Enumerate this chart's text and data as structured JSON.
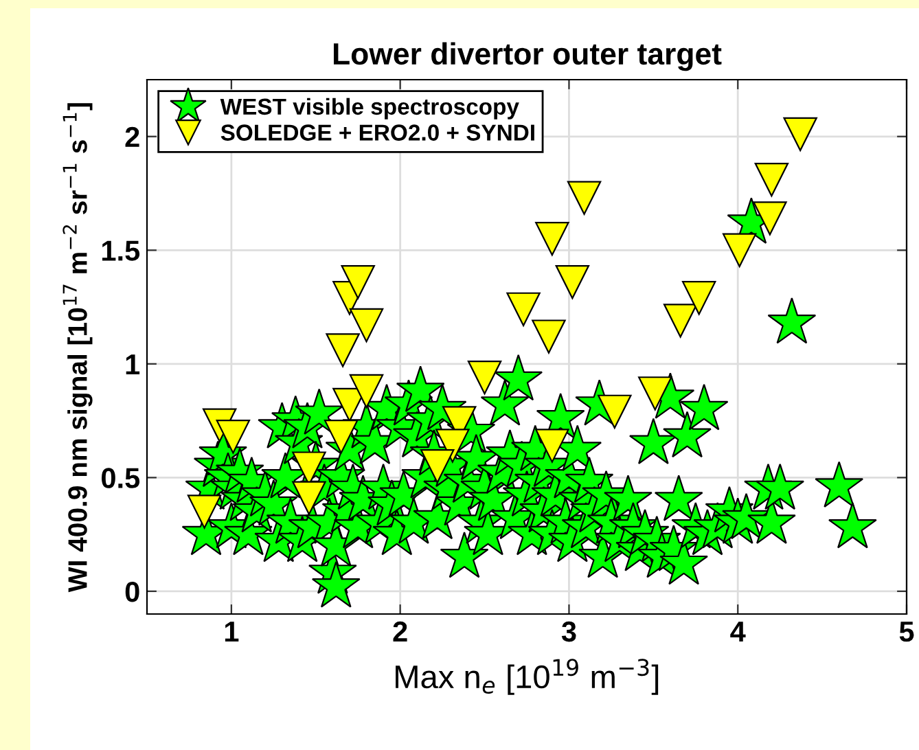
{
  "chart_data": {
    "type": "scatter",
    "title": "Lower divertor outer target",
    "xlabel": "Max n$_{e}$ [10$^{19}$ m$^{−3}$]",
    "ylabel": "WI 400.9 nm signal [10$^{17}$ m$^{−2}$ sr$^{−1}$ s$^{−1}$]",
    "xlim": [
      0.5,
      5
    ],
    "ylim": [
      -0.1,
      2.25
    ],
    "xticks": [
      1,
      2,
      3,
      4,
      5
    ],
    "yticks": [
      0,
      0.5,
      1,
      1.5,
      2
    ],
    "grid": true,
    "legend": "top left",
    "series": [
      {
        "name": "WEST visible spectroscopy",
        "color": "#00ff00",
        "marker": "star",
        "x": [
          0.85,
          0.87,
          0.92,
          0.95,
          0.98,
          1.0,
          1.02,
          1.05,
          1.08,
          1.1,
          1.12,
          1.15,
          1.2,
          1.25,
          1.28,
          1.3,
          1.32,
          1.35,
          1.38,
          1.4,
          1.42,
          1.45,
          1.48,
          1.5,
          1.52,
          1.55,
          1.58,
          1.6,
          1.62,
          1.62,
          1.65,
          1.68,
          1.7,
          1.72,
          1.75,
          1.78,
          1.8,
          1.85,
          1.88,
          1.9,
          1.92,
          1.95,
          1.98,
          2.0,
          2.02,
          2.05,
          2.08,
          2.1,
          2.12,
          2.15,
          2.18,
          2.2,
          2.22,
          2.25,
          2.28,
          2.3,
          2.35,
          2.38,
          2.4,
          2.42,
          2.45,
          2.48,
          2.5,
          2.52,
          2.55,
          2.6,
          2.62,
          2.65,
          2.68,
          2.7,
          2.72,
          2.75,
          2.78,
          2.8,
          2.82,
          2.85,
          2.88,
          2.9,
          2.92,
          2.95,
          2.98,
          3.0,
          3.02,
          3.05,
          3.08,
          3.1,
          3.12,
          3.15,
          3.18,
          3.2,
          3.22,
          3.25,
          3.3,
          3.35,
          3.38,
          3.42,
          3.45,
          3.5,
          3.52,
          3.55,
          3.6,
          3.62,
          3.65,
          3.68,
          3.7,
          3.75,
          3.8,
          3.82,
          3.88,
          3.95,
          4.0,
          4.05,
          4.08,
          4.18,
          4.2,
          4.25,
          4.32,
          4.6,
          4.68
        ],
        "values": [
          0.25,
          0.45,
          0.55,
          0.6,
          0.5,
          0.28,
          0.45,
          0.52,
          0.4,
          0.25,
          0.48,
          0.35,
          0.42,
          0.38,
          0.22,
          0.72,
          0.5,
          0.3,
          0.75,
          0.65,
          0.22,
          0.72,
          0.28,
          0.55,
          0.78,
          0.45,
          0.3,
          0.08,
          0.02,
          0.2,
          0.5,
          0.35,
          0.62,
          0.45,
          0.28,
          0.4,
          0.72,
          0.65,
          0.3,
          0.45,
          0.8,
          0.38,
          0.25,
          0.72,
          0.42,
          0.82,
          0.3,
          0.68,
          0.88,
          0.5,
          0.75,
          0.6,
          0.32,
          0.8,
          0.45,
          0.55,
          0.38,
          0.15,
          0.48,
          0.7,
          0.58,
          0.3,
          0.45,
          0.25,
          0.4,
          0.52,
          0.82,
          0.6,
          0.32,
          0.93,
          0.55,
          0.42,
          0.25,
          0.62,
          0.48,
          0.35,
          0.55,
          0.25,
          0.42,
          0.76,
          0.3,
          0.5,
          0.22,
          0.62,
          0.4,
          0.28,
          0.48,
          0.35,
          0.82,
          0.15,
          0.42,
          0.3,
          0.22,
          0.4,
          0.28,
          0.18,
          0.25,
          0.65,
          0.22,
          0.15,
          0.85,
          0.18,
          0.4,
          0.12,
          0.68,
          0.28,
          0.8,
          0.25,
          0.28,
          0.35,
          0.3,
          0.32,
          1.62,
          0.45,
          0.3,
          0.45,
          1.18,
          0.46,
          0.28
        ]
      },
      {
        "name": "SOLEDGE + ERO2.0 + SYNDI",
        "color": "#ffff00",
        "marker": "triangle",
        "x": [
          0.93,
          1.01,
          0.84,
          1.46,
          1.46,
          1.66,
          1.7,
          1.75,
          1.8,
          1.7,
          1.65,
          1.8,
          2.35,
          2.31,
          2.22,
          2.5,
          2.73,
          2.88,
          2.9,
          3.09,
          3.02,
          2.9,
          3.27,
          3.51,
          3.66,
          3.77,
          4.01,
          4.19,
          4.2,
          4.37
        ],
        "values": [
          0.73,
          0.68,
          0.35,
          0.54,
          0.41,
          1.06,
          1.29,
          1.36,
          1.17,
          0.82,
          0.68,
          0.88,
          0.74,
          0.64,
          0.55,
          0.94,
          1.24,
          1.12,
          1.55,
          1.73,
          1.36,
          0.64,
          0.79,
          0.87,
          1.19,
          1.29,
          1.5,
          1.64,
          1.81,
          2.01
        ]
      }
    ]
  }
}
